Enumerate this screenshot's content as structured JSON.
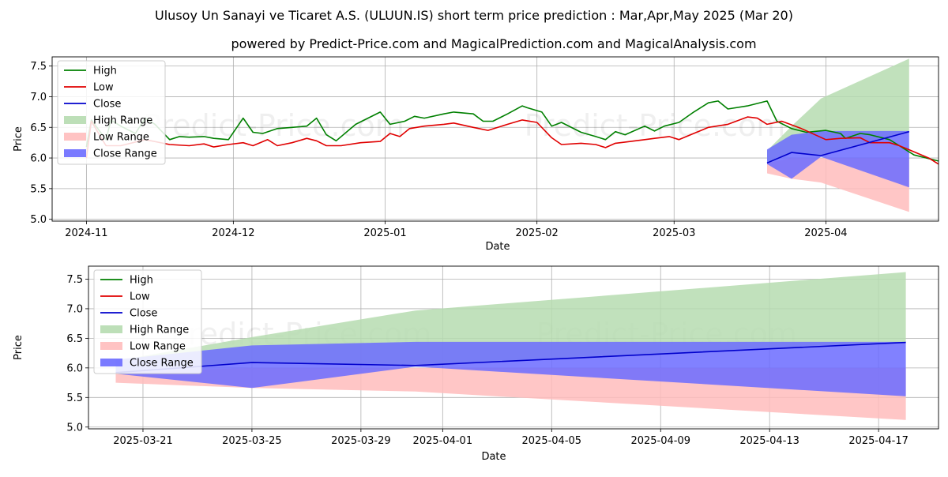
{
  "header": {
    "title": "Ulusoy Un Sanayi ve Ticaret A.S. (ULUUN.IS) short term price prediction : Mar,Apr,May 2025 (Mar 20)",
    "subtitle": "powered by Predict-Price.com and MagicalPrediction.com and MagicalAnalysis.com"
  },
  "watermark": "Predict-Price.com",
  "colors": {
    "high": "#008000",
    "low": "#e00000",
    "close": "#0000cc",
    "high_range": "#b6dcb0",
    "low_range": "#ffbcbc",
    "close_range": "#6b6bff"
  },
  "chart_data": [
    {
      "type": "line",
      "name": "top-panel",
      "xlabel": "Date",
      "ylabel": "Price",
      "ylim": [
        4.97,
        7.65
      ],
      "xlim": [
        "2024-10-25",
        "2025-04-24"
      ],
      "yticks": [
        "5.0",
        "5.5",
        "6.0",
        "6.5",
        "7.0",
        "7.5"
      ],
      "xticks": [
        {
          "date": "2024-11-01",
          "label": "2024-11"
        },
        {
          "date": "2024-12-01",
          "label": "2024-12"
        },
        {
          "date": "2025-01-01",
          "label": "2025-01"
        },
        {
          "date": "2025-02-01",
          "label": "2025-02"
        },
        {
          "date": "2025-03-01",
          "label": "2025-03"
        },
        {
          "date": "2025-04-01",
          "label": "2025-04"
        }
      ],
      "legend": [
        "High",
        "Low",
        "Close",
        "High Range",
        "Low Range",
        "Close Range"
      ],
      "legend_position": "upper-left",
      "series": [
        {
          "name": "High",
          "data": [
            [
              "2024-11-01",
              6.18
            ],
            [
              "2024-11-02",
              6.62
            ],
            [
              "2024-11-05",
              6.3
            ],
            [
              "2024-11-06",
              6.62
            ],
            [
              "2024-11-08",
              6.52
            ],
            [
              "2024-11-11",
              6.4
            ],
            [
              "2024-11-13",
              6.65
            ],
            [
              "2024-11-15",
              6.55
            ],
            [
              "2024-11-18",
              6.3
            ],
            [
              "2024-11-20",
              6.35
            ],
            [
              "2024-11-22",
              6.34
            ],
            [
              "2024-11-25",
              6.35
            ],
            [
              "2024-11-27",
              6.32
            ],
            [
              "2024-11-30",
              6.3
            ],
            [
              "2024-12-03",
              6.65
            ],
            [
              "2024-12-05",
              6.42
            ],
            [
              "2024-12-07",
              6.4
            ],
            [
              "2024-12-10",
              6.48
            ],
            [
              "2024-12-13",
              6.5
            ],
            [
              "2024-12-16",
              6.52
            ],
            [
              "2024-12-18",
              6.65
            ],
            [
              "2024-12-20",
              6.38
            ],
            [
              "2024-12-22",
              6.28
            ],
            [
              "2024-12-26",
              6.55
            ],
            [
              "2024-12-31",
              6.75
            ],
            [
              "2025-01-02",
              6.55
            ],
            [
              "2025-01-05",
              6.6
            ],
            [
              "2025-01-07",
              6.68
            ],
            [
              "2025-01-09",
              6.65
            ],
            [
              "2025-01-13",
              6.72
            ],
            [
              "2025-01-15",
              6.75
            ],
            [
              "2025-01-19",
              6.72
            ],
            [
              "2025-01-21",
              6.6
            ],
            [
              "2025-01-23",
              6.6
            ],
            [
              "2025-01-26",
              6.72
            ],
            [
              "2025-01-29",
              6.85
            ],
            [
              "2025-01-30",
              6.82
            ],
            [
              "2025-02-02",
              6.75
            ],
            [
              "2025-02-04",
              6.52
            ],
            [
              "2025-02-06",
              6.58
            ],
            [
              "2025-02-10",
              6.42
            ],
            [
              "2025-02-13",
              6.35
            ],
            [
              "2025-02-15",
              6.3
            ],
            [
              "2025-02-17",
              6.43
            ],
            [
              "2025-02-19",
              6.38
            ],
            [
              "2025-02-23",
              6.52
            ],
            [
              "2025-02-25",
              6.44
            ],
            [
              "2025-02-27",
              6.52
            ],
            [
              "2025-03-02",
              6.58
            ],
            [
              "2025-03-05",
              6.75
            ],
            [
              "2025-03-08",
              6.9
            ],
            [
              "2025-03-10",
              6.93
            ],
            [
              "2025-03-12",
              6.8
            ],
            [
              "2025-03-16",
              6.85
            ],
            [
              "2025-03-20",
              6.93
            ],
            [
              "2025-03-22",
              6.6
            ],
            [
              "2025-03-25",
              6.48
            ],
            [
              "2025-03-28",
              6.42
            ],
            [
              "2025-04-01",
              6.45
            ],
            [
              "2025-04-04",
              6.4
            ],
            [
              "2025-04-05",
              6.32
            ],
            [
              "2025-04-08",
              6.4
            ],
            [
              "2025-04-10",
              6.38
            ],
            [
              "2025-04-14",
              6.3
            ],
            [
              "2025-04-16",
              6.2
            ],
            [
              "2025-04-19",
              6.05
            ],
            [
              "2025-04-24",
              5.95
            ]
          ]
        },
        {
          "name": "Low",
          "data": [
            [
              "2024-11-01",
              6.0
            ],
            [
              "2024-11-02",
              6.6
            ],
            [
              "2024-11-05",
              6.2
            ],
            [
              "2024-11-08",
              6.2
            ],
            [
              "2024-11-13",
              6.3
            ],
            [
              "2024-11-18",
              6.22
            ],
            [
              "2024-11-22",
              6.2
            ],
            [
              "2024-11-25",
              6.23
            ],
            [
              "2024-11-27",
              6.18
            ],
            [
              "2024-11-30",
              6.22
            ],
            [
              "2024-12-03",
              6.25
            ],
            [
              "2024-12-05",
              6.2
            ],
            [
              "2024-12-08",
              6.3
            ],
            [
              "2024-12-10",
              6.2
            ],
            [
              "2024-12-13",
              6.25
            ],
            [
              "2024-12-16",
              6.32
            ],
            [
              "2024-12-18",
              6.28
            ],
            [
              "2024-12-20",
              6.2
            ],
            [
              "2024-12-23",
              6.2
            ],
            [
              "2024-12-27",
              6.25
            ],
            [
              "2024-12-31",
              6.27
            ],
            [
              "2025-01-02",
              6.4
            ],
            [
              "2025-01-04",
              6.35
            ],
            [
              "2025-01-06",
              6.48
            ],
            [
              "2025-01-09",
              6.52
            ],
            [
              "2025-01-13",
              6.55
            ],
            [
              "2025-01-15",
              6.57
            ],
            [
              "2025-01-19",
              6.5
            ],
            [
              "2025-01-22",
              6.45
            ],
            [
              "2025-01-26",
              6.55
            ],
            [
              "2025-01-29",
              6.62
            ],
            [
              "2025-02-01",
              6.58
            ],
            [
              "2025-02-04",
              6.33
            ],
            [
              "2025-02-06",
              6.22
            ],
            [
              "2025-02-10",
              6.24
            ],
            [
              "2025-02-13",
              6.22
            ],
            [
              "2025-02-15",
              6.17
            ],
            [
              "2025-02-17",
              6.24
            ],
            [
              "2025-02-19",
              6.26
            ],
            [
              "2025-02-23",
              6.3
            ],
            [
              "2025-02-25",
              6.32
            ],
            [
              "2025-02-28",
              6.35
            ],
            [
              "2025-03-02",
              6.3
            ],
            [
              "2025-03-05",
              6.4
            ],
            [
              "2025-03-08",
              6.5
            ],
            [
              "2025-03-12",
              6.55
            ],
            [
              "2025-03-16",
              6.67
            ],
            [
              "2025-03-18",
              6.65
            ],
            [
              "2025-03-20",
              6.55
            ],
            [
              "2025-03-23",
              6.6
            ],
            [
              "2025-03-27",
              6.48
            ],
            [
              "2025-04-01",
              6.3
            ],
            [
              "2025-04-04",
              6.32
            ],
            [
              "2025-04-08",
              6.33
            ],
            [
              "2025-04-10",
              6.25
            ],
            [
              "2025-04-14",
              6.25
            ],
            [
              "2025-04-16",
              6.2
            ],
            [
              "2025-04-19",
              6.1
            ],
            [
              "2025-04-22",
              6.0
            ],
            [
              "2025-04-24",
              5.9
            ]
          ]
        },
        {
          "name": "High Range",
          "data": [
            [
              "2025-03-20",
              6.12
            ],
            [
              "2025-03-25",
              6.52
            ],
            [
              "2025-03-31",
              6.97
            ],
            [
              "2025-04-18",
              7.62
            ]
          ]
        },
        {
          "name": "Low Range",
          "data": [
            [
              "2025-03-20",
              5.75
            ],
            [
              "2025-03-25",
              5.66
            ],
            [
              "2025-03-31",
              5.6
            ],
            [
              "2025-04-18",
              5.12
            ]
          ]
        },
        {
          "name": "Close Range",
          "data": [
            [
              "2025-03-20",
              5.9,
              6.14
            ],
            [
              "2025-03-25",
              5.66,
              6.38
            ],
            [
              "2025-03-31",
              6.02,
              6.44
            ],
            [
              "2025-04-18",
              5.52,
              6.44
            ]
          ]
        },
        {
          "name": "Close",
          "data": [
            [
              "2025-03-20",
              5.92
            ],
            [
              "2025-03-25",
              6.09
            ],
            [
              "2025-03-31",
              6.04
            ],
            [
              "2025-04-18",
              6.43
            ]
          ]
        }
      ]
    },
    {
      "type": "line",
      "name": "bottom-panel",
      "xlabel": "Date",
      "ylabel": "Price",
      "ylim": [
        4.97,
        7.72
      ],
      "xlim": [
        "2025-03-19.0",
        "2025-04-19.2"
      ],
      "yticks": [
        "5.0",
        "5.5",
        "6.0",
        "6.5",
        "7.0",
        "7.5"
      ],
      "xticks": [
        {
          "date": "2025-03-21",
          "label": "2025-03-21"
        },
        {
          "date": "2025-03-25",
          "label": "2025-03-25"
        },
        {
          "date": "2025-03-29",
          "label": "2025-03-29"
        },
        {
          "date": "2025-04-01",
          "label": "2025-04-01"
        },
        {
          "date": "2025-04-05",
          "label": "2025-04-05"
        },
        {
          "date": "2025-04-09",
          "label": "2025-04-09"
        },
        {
          "date": "2025-04-13",
          "label": "2025-04-13"
        },
        {
          "date": "2025-04-17",
          "label": "2025-04-17"
        }
      ],
      "legend": [
        "High",
        "Low",
        "Close",
        "High Range",
        "Low Range",
        "Close Range"
      ],
      "legend_position": "upper-left",
      "series": [
        {
          "name": "High Range",
          "data": [
            [
              "2025-03-20",
              6.12
            ],
            [
              "2025-03-25",
              6.52
            ],
            [
              "2025-03-31",
              6.97
            ],
            [
              "2025-04-18",
              7.62
            ]
          ]
        },
        {
          "name": "Low Range",
          "data": [
            [
              "2025-03-20",
              5.75
            ],
            [
              "2025-03-25",
              5.66
            ],
            [
              "2025-03-31",
              5.6
            ],
            [
              "2025-04-18",
              5.12
            ]
          ]
        },
        {
          "name": "Close Range",
          "data": [
            [
              "2025-03-20",
              5.9,
              6.14
            ],
            [
              "2025-03-25",
              5.66,
              6.38
            ],
            [
              "2025-03-31",
              6.02,
              6.44
            ],
            [
              "2025-04-18",
              5.52,
              6.44
            ]
          ]
        },
        {
          "name": "Close",
          "data": [
            [
              "2025-03-20",
              5.92
            ],
            [
              "2025-03-25",
              6.09
            ],
            [
              "2025-03-31",
              6.04
            ],
            [
              "2025-04-18",
              6.43
            ]
          ]
        }
      ]
    }
  ]
}
